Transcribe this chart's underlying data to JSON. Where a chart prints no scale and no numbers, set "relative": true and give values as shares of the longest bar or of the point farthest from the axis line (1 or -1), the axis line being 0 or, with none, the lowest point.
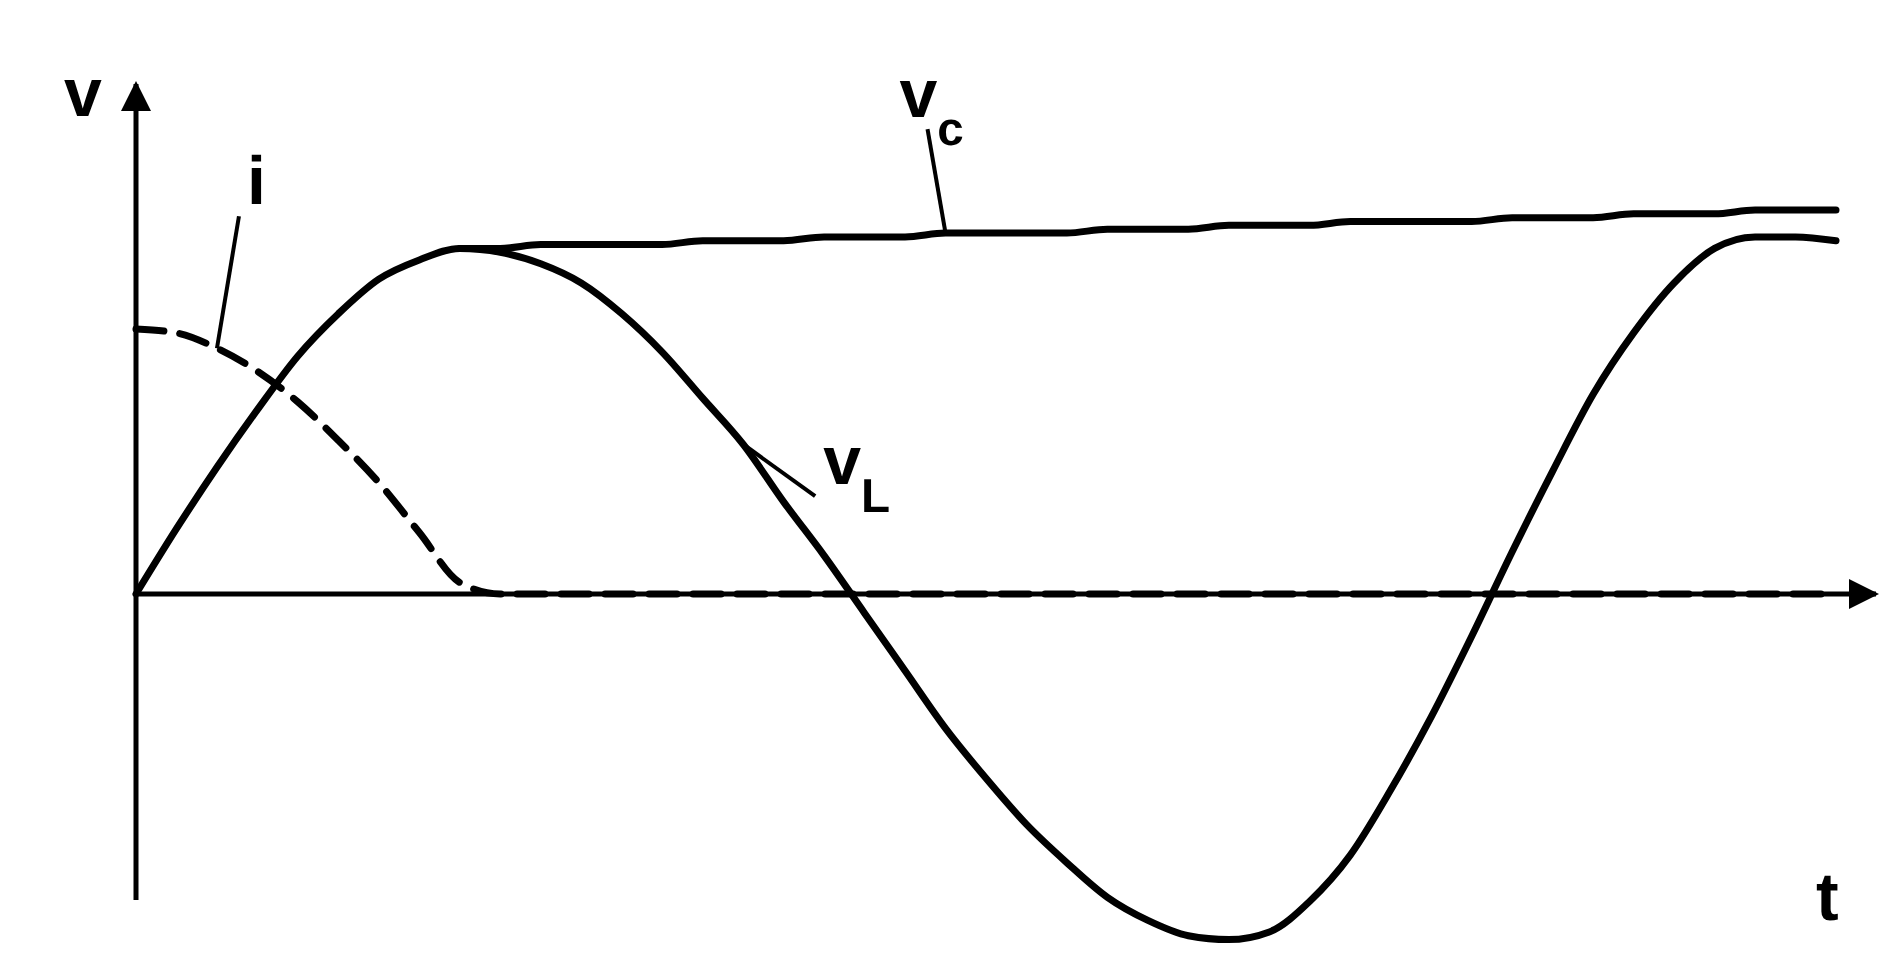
{
  "chart_data": {
    "type": "line",
    "relative": true,
    "xlabel": "t",
    "ylabel": "v",
    "marker": "none",
    "categories": [
      null,
      null,
      null,
      null,
      null,
      null,
      null,
      null,
      null,
      null,
      null,
      null,
      null,
      null,
      null,
      null,
      null,
      null,
      null,
      null,
      null,
      null,
      null,
      null,
      null,
      null,
      null,
      null,
      null,
      null,
      null,
      null,
      null,
      null,
      null,
      null,
      null,
      null,
      null,
      null,
      null,
      null,
      null
    ],
    "series": [
      {
        "name": "v$_{c}$",
        "color": "#000000",
        "line_style": "solid",
        "values": [
          null,
          null,
          null,
          null,
          null,
          null,
          null,
          null,
          0.9,
          0.9,
          0.91,
          0.91,
          0.91,
          0.91,
          0.92,
          0.92,
          0.92,
          0.93,
          0.93,
          0.93,
          0.94,
          0.94,
          0.94,
          0.94,
          0.95,
          0.95,
          0.95,
          0.96,
          0.96,
          0.96,
          0.97,
          0.97,
          0.97,
          0.97,
          0.98,
          0.98,
          0.98,
          0.99,
          0.99,
          0.99,
          1.0,
          1.0,
          1.0
        ]
      },
      {
        "name": "v$_{L}$",
        "color": "#000000",
        "line_style": "solid",
        "values": [
          0,
          0.17,
          0.33,
          0.48,
          0.62,
          0.73,
          0.82,
          0.87,
          0.9,
          0.89,
          0.86,
          0.81,
          0.73,
          0.63,
          0.51,
          0.39,
          0.24,
          0.1,
          -0.05,
          -0.2,
          -0.35,
          -0.48,
          -0.6,
          -0.7,
          -0.79,
          -0.85,
          -0.89,
          -0.9,
          -0.88,
          -0.8,
          -0.68,
          -0.51,
          -0.32,
          -0.11,
          0.11,
          0.32,
          0.52,
          0.68,
          0.81,
          0.9,
          0.93,
          0.93,
          0.92
        ]
      },
      {
        "name": "i",
        "color": "#000000",
        "line_style": "dashed",
        "values": [
          0.69,
          0.68,
          0.64,
          0.58,
          0.5,
          0.4,
          0.29,
          0.16,
          0.03,
          0,
          0,
          0,
          0,
          0,
          0,
          0,
          0,
          0,
          0,
          0,
          0,
          0,
          0,
          0,
          0,
          0,
          0,
          0,
          0,
          0,
          0,
          0,
          0,
          0,
          0,
          0,
          0,
          0,
          0,
          0,
          0,
          0,
          0
        ]
      }
    ]
  }
}
